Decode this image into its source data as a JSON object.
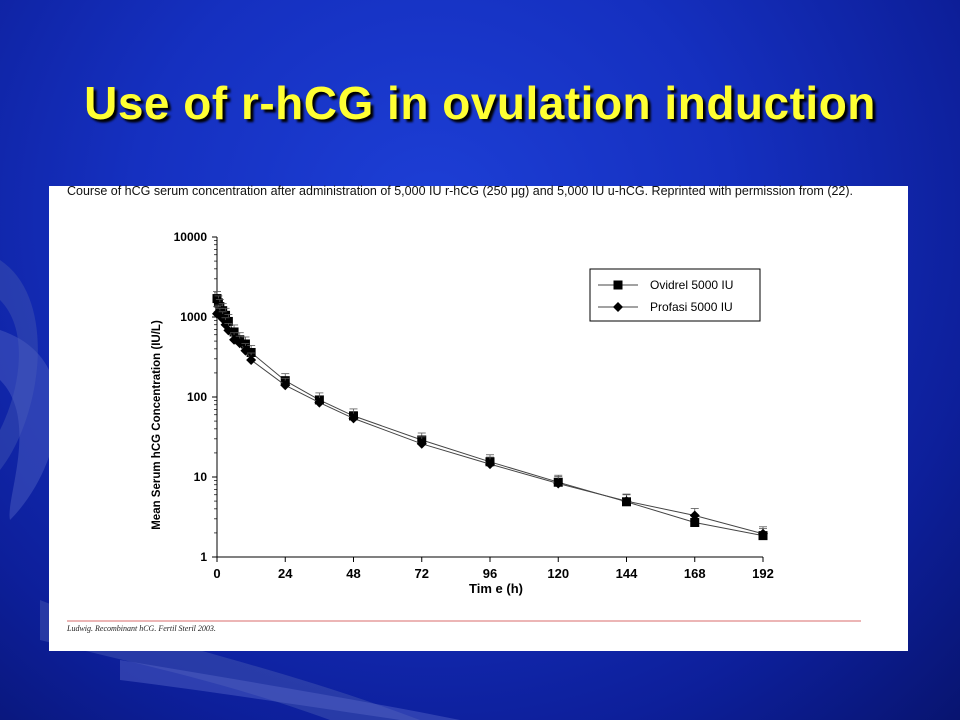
{
  "slide": {
    "title": "Use of r-hCG in ovulation induction"
  },
  "figure": {
    "caption": "Course of hCG serum concentration after administration of 5,000 IU r-hCG (250 μg) and 5,000 IU u-hCG. Reprinted with permission from (22).",
    "citation": "Ludwig. Recombinant hCG. Fertil Steril 2003."
  },
  "chart_data": {
    "type": "line",
    "xlabel": "Tim e (h)",
    "ylabel": "Mean Serum hCG Concentration (IU/L)",
    "x_ticks": [
      "0",
      "24",
      "48",
      "72",
      "96",
      "120",
      "144",
      "168",
      "192"
    ],
    "y_ticks": [
      "1",
      "10",
      "100",
      "1000",
      "10000"
    ],
    "xlim": [
      0,
      192
    ],
    "ylim": [
      1,
      10000
    ],
    "y_scale": "log",
    "legend_position": "top-right",
    "colors": {
      "line": "#444444",
      "marker": "#000000"
    },
    "series": [
      {
        "name": "Ovidrel 5000 IU",
        "marker": "square",
        "x": [
          0,
          0.5,
          1,
          2,
          3,
          4,
          6,
          8,
          10,
          12,
          24,
          36,
          48,
          72,
          96,
          120,
          144,
          168,
          192
        ],
        "y": [
          1700,
          1500,
          1350,
          1200,
          1050,
          880,
          650,
          520,
          460,
          360,
          160,
          92,
          58,
          29,
          15.5,
          8.6,
          4.9,
          2.7,
          1.85
        ]
      },
      {
        "name": "Profasi 5000 IU",
        "marker": "diamond",
        "x": [
          0,
          0.5,
          1,
          2,
          3,
          4,
          6,
          8,
          10,
          12,
          24,
          36,
          48,
          72,
          96,
          120,
          144,
          168,
          192
        ],
        "y": [
          1100,
          1150,
          1050,
          950,
          800,
          680,
          520,
          470,
          380,
          290,
          140,
          85,
          54,
          26,
          14.5,
          8.3,
          5.0,
          3.3,
          1.95
        ]
      }
    ]
  }
}
